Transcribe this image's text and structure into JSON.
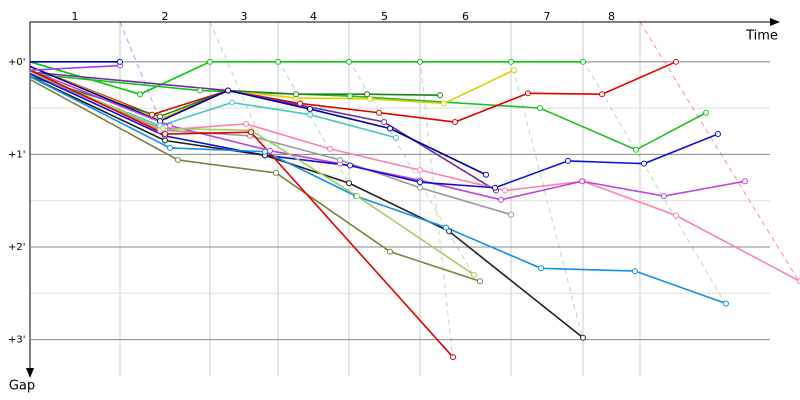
{
  "chart_data": {
    "type": "line",
    "x_label": "Time",
    "y_label": "Gap",
    "laps": [
      "1",
      "2",
      "3",
      "4",
      "5",
      "6",
      "7",
      "8"
    ],
    "lap_boundaries": [
      0,
      90,
      180,
      248,
      319,
      390,
      481,
      553,
      610
    ],
    "xlim": [
      0,
      770
    ],
    "ylim": [
      -0.43,
      3.35
    ],
    "yticks": [
      {
        "value": 0,
        "label": "+0'"
      },
      {
        "value": 1,
        "label": "+1'"
      },
      {
        "value": 2,
        "label": "+2'"
      },
      {
        "value": 3,
        "label": "+3'"
      }
    ],
    "minor_yticks": [
      0.5,
      1.5,
      2.5
    ],
    "grid": true,
    "series": [
      {
        "color": "#00cc00",
        "x": [
          0,
          110,
          180,
          248,
          319,
          390,
          481,
          553
        ],
        "values": [
          0,
          0.35,
          0,
          0,
          0,
          0,
          0,
          0
        ]
      },
      {
        "color": "#20c020",
        "x": [
          0,
          170,
          320,
          510,
          606,
          676
        ],
        "values": [
          0.13,
          0.31,
          0.37,
          0.5,
          0.95,
          0.55
        ]
      },
      {
        "color": "#e00000",
        "x": [
          0,
          122,
          198,
          270,
          349,
          425,
          498,
          572,
          646
        ],
        "values": [
          0.05,
          0.57,
          0.31,
          0.45,
          0.55,
          0.65,
          0.34,
          0.35,
          0
        ]
      },
      {
        "color": "#e0d000",
        "x": [
          0,
          130,
          198,
          266,
          340,
          414,
          484
        ],
        "values": [
          0.05,
          0.62,
          0.31,
          0.39,
          0.4,
          0.45,
          0.09
        ]
      },
      {
        "color": "#208020",
        "x": [
          0,
          130,
          198,
          266,
          337,
          410
        ],
        "values": [
          0.16,
          0.59,
          0.31,
          0.35,
          0.35,
          0.36
        ]
      },
      {
        "color": "#7030a0",
        "x": [
          0,
          198,
          354,
          466
        ],
        "values": [
          0.11,
          0.31,
          0.65,
          1.39
        ]
      },
      {
        "color": "#0000aa",
        "x": [
          0,
          130,
          198,
          280,
          360,
          456
        ],
        "values": [
          0.05,
          0.64,
          0.31,
          0.51,
          0.72,
          1.22
        ]
      },
      {
        "color": "#40c8c8",
        "x": [
          0,
          130,
          202,
          280,
          366
        ],
        "values": [
          0.13,
          0.69,
          0.44,
          0.57,
          0.82
        ]
      },
      {
        "color": "#ff80b0",
        "x": [
          0,
          130,
          216,
          300,
          390,
          475,
          553,
          646,
          770
        ],
        "values": [
          0.11,
          0.74,
          0.67,
          0.94,
          1.17,
          1.39,
          1.29,
          1.66,
          2.37
        ]
      },
      {
        "color": "#c040e0",
        "x": [
          0,
          140,
          240,
          310,
          390,
          471,
          552,
          634,
          715
        ],
        "values": [
          0.09,
          0.69,
          0.96,
          1.1,
          1.28,
          1.49,
          1.29,
          1.45,
          1.29
        ]
      },
      {
        "color": "#999999",
        "x": [
          0,
          135,
          220,
          310,
          390,
          481
        ],
        "values": [
          0.13,
          0.74,
          0.8,
          1.06,
          1.36,
          1.65
        ]
      },
      {
        "color": "#1010dd",
        "x": [
          0,
          135,
          235,
          320,
          390,
          465,
          538,
          614,
          688
        ],
        "values": [
          0.13,
          0.8,
          1.01,
          1.12,
          1.3,
          1.36,
          1.07,
          1.1,
          0.78
        ]
      },
      {
        "color": "#202020",
        "x": [
          0,
          135,
          235,
          319,
          419,
          553
        ],
        "values": [
          0.16,
          0.85,
          1.01,
          1.31,
          1.83,
          2.98
        ]
      },
      {
        "color": "#1090ee",
        "x": [
          0,
          140,
          235,
          326,
          416,
          511,
          605,
          696
        ],
        "values": [
          0.16,
          0.93,
          0.97,
          1.45,
          1.79,
          2.23,
          2.26,
          2.61
        ]
      },
      {
        "color": "#a0d060",
        "x": [
          0,
          133,
          221,
          327,
          444
        ],
        "values": [
          0.11,
          0.72,
          0.74,
          1.45,
          2.3
        ]
      },
      {
        "color": "#808040",
        "x": [
          0,
          148,
          246,
          360,
          450
        ],
        "values": [
          0.19,
          1.06,
          1.2,
          2.05,
          2.37
        ]
      },
      {
        "color": "#e00000",
        "x": [
          0,
          135,
          221,
          423
        ],
        "values": [
          0.09,
          0.78,
          0.76,
          3.19
        ]
      },
      {
        "color": "#a040ff",
        "x": [
          0,
          90
        ],
        "values": [
          0.09,
          0.04
        ]
      },
      {
        "color": "#0000cc",
        "x": [
          0,
          90
        ],
        "values": [
          0,
          0
        ]
      }
    ]
  }
}
